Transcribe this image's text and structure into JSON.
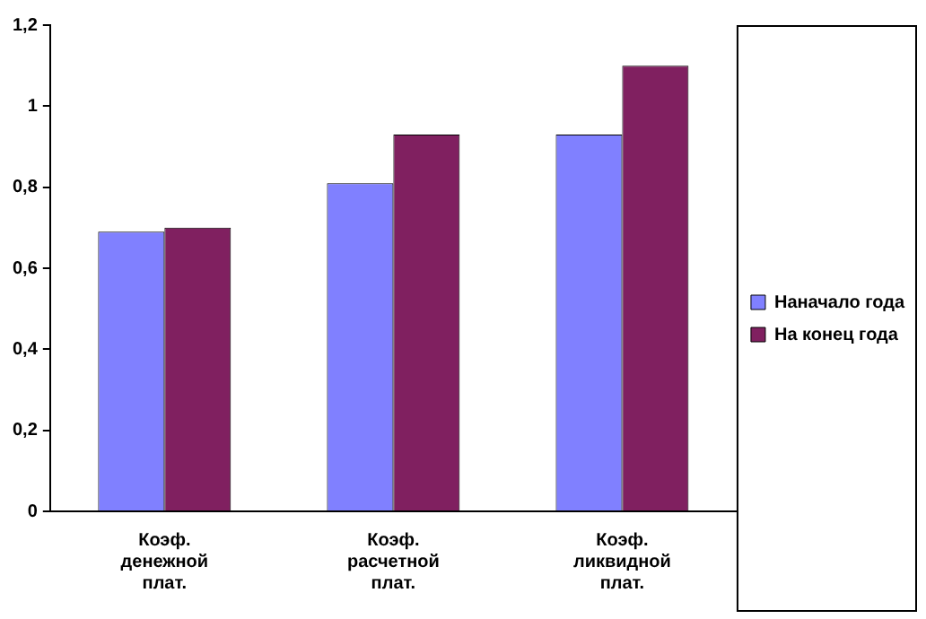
{
  "chart_data": {
    "type": "bar",
    "categories": [
      "Коэф. денежной плат.",
      "Коэф. расчетной плат.",
      "Коэф. ликвидной плат."
    ],
    "series": [
      {
        "name": "Наначало года",
        "color": "#8080ff",
        "values": [
          0.69,
          0.81,
          0.93
        ]
      },
      {
        "name": "На конец года",
        "color": "#802060",
        "values": [
          0.7,
          0.93,
          1.1
        ]
      }
    ],
    "ylim": [
      0,
      1.2
    ],
    "yticks": [
      0,
      {
        "value": 0.2,
        "label": "0,2"
      },
      {
        "value": 0.4,
        "label": "0,4"
      },
      {
        "value": 0.6,
        "label": "0,6"
      },
      {
        "value": 0.8,
        "label": "0,8"
      },
      1,
      {
        "value": 1.2,
        "label": "1,2"
      }
    ],
    "grid": false,
    "legend": "right"
  }
}
